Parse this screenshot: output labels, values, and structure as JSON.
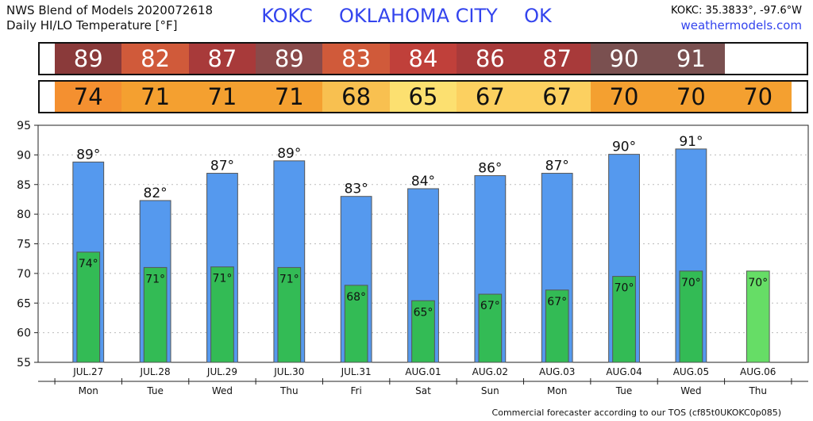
{
  "header": {
    "line1": "NWS Blend of Models 2020072618",
    "line2": "Daily HI/LO Temperature [°F]",
    "station": "KOKC",
    "city": "OKLAHOMA CITY",
    "state": "OK",
    "coords": "KOKC: 35.3833°, -97.6°W",
    "site": "weathermodels.com"
  },
  "footer": "Commercial forecaster according to our TOS (cf85t0UKOKC0p085)",
  "colors": {
    "high_bar": "#5599ee",
    "low_bar": "#33bb55",
    "low_bar_lonely": "#66dd66",
    "high_strip": [
      "#8a3a3a",
      "#d05a3a",
      "#a83a3a",
      "#8a4a4a",
      "#d05a3a",
      "#c0403a",
      "#a83a3a",
      "#a83a3a",
      "#7a5050",
      "#7a5050"
    ],
    "low_strip": [
      "#f49030",
      "#f4a030",
      "#f4a030",
      "#f4a030",
      "#f8c050",
      "#fce070",
      "#fcd060",
      "#fcd060",
      "#f4a030",
      "#f4a030",
      "#f4a030"
    ]
  },
  "chart_data": {
    "type": "bar",
    "categories": [
      "JUL.27",
      "JUL.28",
      "JUL.29",
      "JUL.30",
      "JUL.31",
      "AUG.01",
      "AUG.02",
      "AUG.03",
      "AUG.04",
      "AUG.05",
      "AUG.06"
    ],
    "weekdays": [
      "Mon",
      "Tue",
      "Wed",
      "Thu",
      "Fri",
      "Sat",
      "Sun",
      "Mon",
      "Tue",
      "Wed",
      "Thu"
    ],
    "series": [
      {
        "name": "HI",
        "values": [
          88.8,
          82.3,
          86.9,
          89.0,
          83.0,
          84.3,
          86.5,
          86.9,
          90.1,
          91.0,
          null
        ],
        "labels": [
          "89°",
          "82°",
          "87°",
          "89°",
          "83°",
          "84°",
          "86°",
          "87°",
          "90°",
          "91°",
          ""
        ]
      },
      {
        "name": "LO",
        "values": [
          73.6,
          71.0,
          71.1,
          71.0,
          68.0,
          65.4,
          66.5,
          67.2,
          69.5,
          70.4,
          70.4
        ],
        "labels": [
          "74°",
          "71°",
          "71°",
          "71°",
          "68°",
          "65°",
          "67°",
          "67°",
          "70°",
          "70°",
          "70°"
        ]
      }
    ],
    "high_strip": [
      "89",
      "82",
      "87",
      "89",
      "83",
      "84",
      "86",
      "87",
      "90",
      "91",
      ""
    ],
    "low_strip": [
      "74",
      "71",
      "71",
      "71",
      "68",
      "65",
      "67",
      "67",
      "70",
      "70",
      "70"
    ],
    "yticks": [
      "95",
      "90",
      "85",
      "80",
      "75",
      "70",
      "65",
      "60",
      "55"
    ],
    "ylim": [
      55,
      95
    ],
    "grid": true
  }
}
